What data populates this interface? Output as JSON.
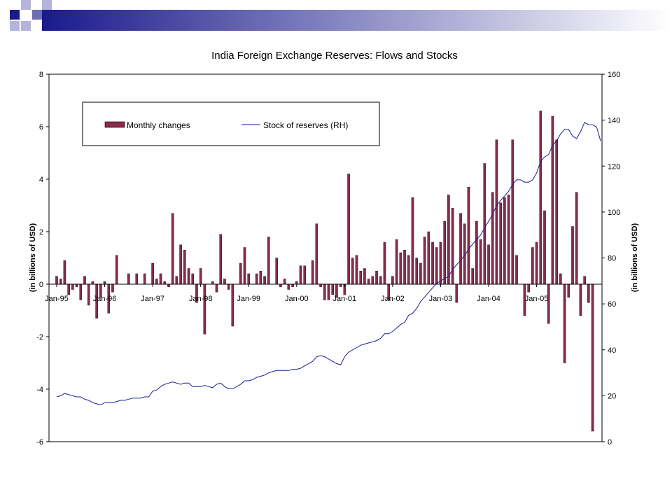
{
  "slide": {
    "header_squares": [
      {
        "color": "#1a1a8c"
      },
      {
        "color": "#b4b4dc"
      },
      {
        "color": "#b4b4dc"
      },
      {
        "color": "#6e6eb4"
      },
      {
        "color": "#b4b4dc"
      },
      {
        "color": "#b4b4dc"
      }
    ],
    "header_bar": {
      "color_start": "#1a1a8c",
      "color_end": "#ffffff"
    }
  },
  "chart_data": {
    "type": "bar+line",
    "title": "India Foreign Exchange Reserves: Flows and Stocks",
    "ylabel_left": "(in billions of USD)",
    "ylabel_right": "(in billions of USD)",
    "ylim_left": [
      -6,
      8
    ],
    "ylim_right": [
      0,
      160
    ],
    "yticks_left": [
      "8",
      "6",
      "4",
      "2",
      "0",
      "-2",
      "-4",
      "-6"
    ],
    "yticks_right": [
      "160",
      "140",
      "120",
      "100",
      "80",
      "60",
      "40",
      "20",
      "0"
    ],
    "x_tick_labels": [
      "Jan-95",
      "Jan-96",
      "Jan-97",
      "Jan-98",
      "Jan-99",
      "Jan-00",
      "Jan-01",
      "Jan-02",
      "Jan-03",
      "Jan-04",
      "Jan-05"
    ],
    "x_start": "Jan-95",
    "x_end": "Aug-05",
    "legend_position": "top-left",
    "colors": {
      "bars": "#8c2a4a",
      "line": "#1a1aa0"
    },
    "series": [
      {
        "name": "Monthly changes",
        "kind": "bar",
        "axis": "left",
        "values": [
          0.3,
          0.2,
          0.9,
          -0.4,
          -0.2,
          -0.1,
          -0.6,
          0.3,
          -0.8,
          0.1,
          -1.3,
          -0.5,
          0.1,
          -1.1,
          -0.3,
          1.1,
          0.0,
          0.0,
          0.4,
          0.0,
          0.4,
          0.0,
          0.4,
          0.0,
          0.8,
          0.2,
          0.4,
          0.1,
          -0.1,
          2.7,
          0.3,
          1.5,
          1.3,
          0.6,
          0.4,
          -0.7,
          0.6,
          -1.9,
          0.0,
          0.1,
          -0.3,
          1.9,
          0.2,
          -0.2,
          -1.6,
          0.0,
          0.8,
          1.4,
          0.4,
          0.0,
          0.4,
          0.5,
          0.3,
          1.8,
          0.0,
          1.0,
          -0.1,
          0.2,
          -0.2,
          -0.1,
          0.1,
          0.7,
          0.7,
          0.0,
          0.9,
          2.3,
          -0.1,
          -0.6,
          -0.6,
          -0.4,
          -0.5,
          -0.1,
          -0.4,
          4.2,
          1.0,
          1.1,
          0.5,
          0.6,
          0.2,
          0.3,
          0.5,
          0.3,
          1.6,
          -0.6,
          0.3,
          1.7,
          1.2,
          1.3,
          1.1,
          3.3,
          1.0,
          0.8,
          1.8,
          2.0,
          1.6,
          1.4,
          1.6,
          2.4,
          3.4,
          2.9,
          -0.7,
          2.7,
          2.3,
          3.7,
          0.6,
          2.4,
          1.7,
          4.6,
          1.5,
          3.5,
          5.5,
          3.1,
          3.3,
          3.4,
          5.5,
          1.1,
          0.0,
          -1.2,
          -0.3,
          1.4,
          1.6,
          6.6,
          2.8,
          -1.5,
          6.4,
          5.5,
          0.4,
          -3.0,
          -0.5,
          2.2,
          3.5,
          -1.2,
          0.3,
          -0.7,
          -5.6
        ],
        "first_month": "Jan-95"
      },
      {
        "name": "Stock of reserves (RH)",
        "kind": "line",
        "axis": "right",
        "values": [
          19.5,
          20,
          21,
          20.5,
          20,
          19.5,
          19.5,
          18.5,
          18,
          17,
          16.5,
          16,
          17,
          17,
          17,
          17.5,
          18,
          18,
          18.5,
          19,
          19,
          19,
          19.5,
          19.5,
          22,
          22.5,
          24,
          25,
          25.5,
          26,
          25.5,
          25,
          25.5,
          25.5,
          24,
          24,
          24,
          24.5,
          24,
          23.5,
          25,
          25.5,
          24,
          23,
          23,
          24,
          25,
          26.5,
          26.5,
          27,
          28,
          28.5,
          29,
          30,
          30.5,
          31,
          31,
          31,
          31,
          31.5,
          31.5,
          32,
          33,
          34,
          35,
          37,
          37.5,
          37,
          36,
          35,
          34,
          33.5,
          37,
          39,
          40,
          41,
          42,
          42.5,
          43,
          43.5,
          44,
          45,
          47,
          47,
          48,
          49.5,
          51,
          52,
          55,
          56,
          58,
          61,
          63,
          65,
          67,
          69,
          70,
          71,
          72,
          75,
          77,
          79,
          81,
          84,
          86,
          88,
          90,
          93,
          96,
          99,
          103,
          105,
          107,
          109,
          112,
          114,
          114,
          113,
          113,
          114,
          117,
          122,
          124,
          125,
          129,
          131,
          134,
          136,
          136,
          133,
          132,
          135,
          139,
          138,
          138,
          137,
          131
        ],
        "first_month": "Jan-95"
      }
    ]
  }
}
